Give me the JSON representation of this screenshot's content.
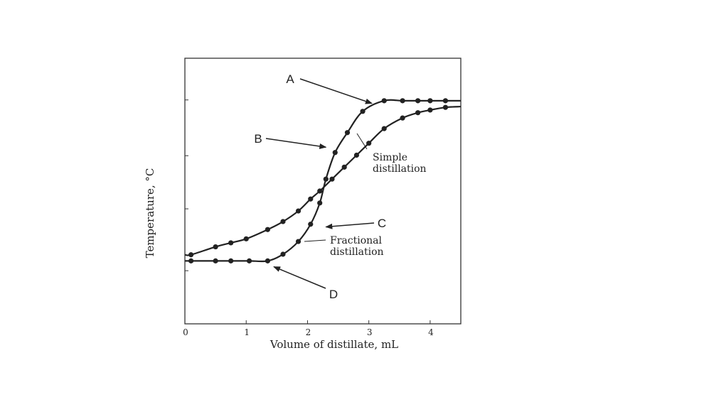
{
  "chart_data": {
    "type": "line",
    "xlabel": "Volume of distillate, mL",
    "ylabel": "Temperature, °C",
    "xlim": [
      0,
      4.5
    ],
    "ylim": [
      0,
      1
    ],
    "x_ticks": [
      0,
      1,
      2,
      3,
      4
    ],
    "grid": false,
    "series": [
      {
        "name": "Simple distillation",
        "points": [
          [
            0.1,
            0.26
          ],
          [
            0.5,
            0.29
          ],
          [
            0.75,
            0.305
          ],
          [
            1.0,
            0.32
          ],
          [
            1.35,
            0.355
          ],
          [
            1.6,
            0.385
          ],
          [
            1.85,
            0.425
          ],
          [
            2.05,
            0.47
          ],
          [
            2.2,
            0.5
          ],
          [
            2.4,
            0.545
          ],
          [
            2.6,
            0.59
          ],
          [
            2.8,
            0.635
          ],
          [
            3.0,
            0.68
          ],
          [
            3.25,
            0.735
          ],
          [
            3.55,
            0.775
          ],
          [
            3.8,
            0.795
          ],
          [
            4.0,
            0.805
          ],
          [
            4.25,
            0.815
          ],
          [
            4.5,
            0.818
          ]
        ]
      },
      {
        "name": "Fractional distillation",
        "points": [
          [
            0.1,
            0.237
          ],
          [
            0.5,
            0.237
          ],
          [
            0.75,
            0.237
          ],
          [
            1.05,
            0.237
          ],
          [
            1.35,
            0.237
          ],
          [
            1.6,
            0.262
          ],
          [
            1.85,
            0.31
          ],
          [
            2.05,
            0.375
          ],
          [
            2.2,
            0.455
          ],
          [
            2.3,
            0.545
          ],
          [
            2.45,
            0.645
          ],
          [
            2.65,
            0.72
          ],
          [
            2.9,
            0.8
          ],
          [
            3.25,
            0.84
          ],
          [
            3.55,
            0.84
          ],
          [
            3.8,
            0.84
          ],
          [
            4.0,
            0.84
          ],
          [
            4.25,
            0.84
          ],
          [
            4.5,
            0.84
          ]
        ]
      }
    ],
    "annotations": [
      {
        "text": "A",
        "point_to": [
          3.05,
          0.83
        ]
      },
      {
        "text": "B",
        "point_to": [
          2.3,
          0.665
        ]
      },
      {
        "text": "C",
        "point_to": [
          2.3,
          0.365
        ]
      },
      {
        "text": "D",
        "point_to": [
          1.45,
          0.215
        ]
      }
    ],
    "series_labels": [
      {
        "lines": [
          "Simple",
          "distillation"
        ]
      },
      {
        "lines": [
          "Fractional",
          "distillation"
        ]
      }
    ]
  }
}
